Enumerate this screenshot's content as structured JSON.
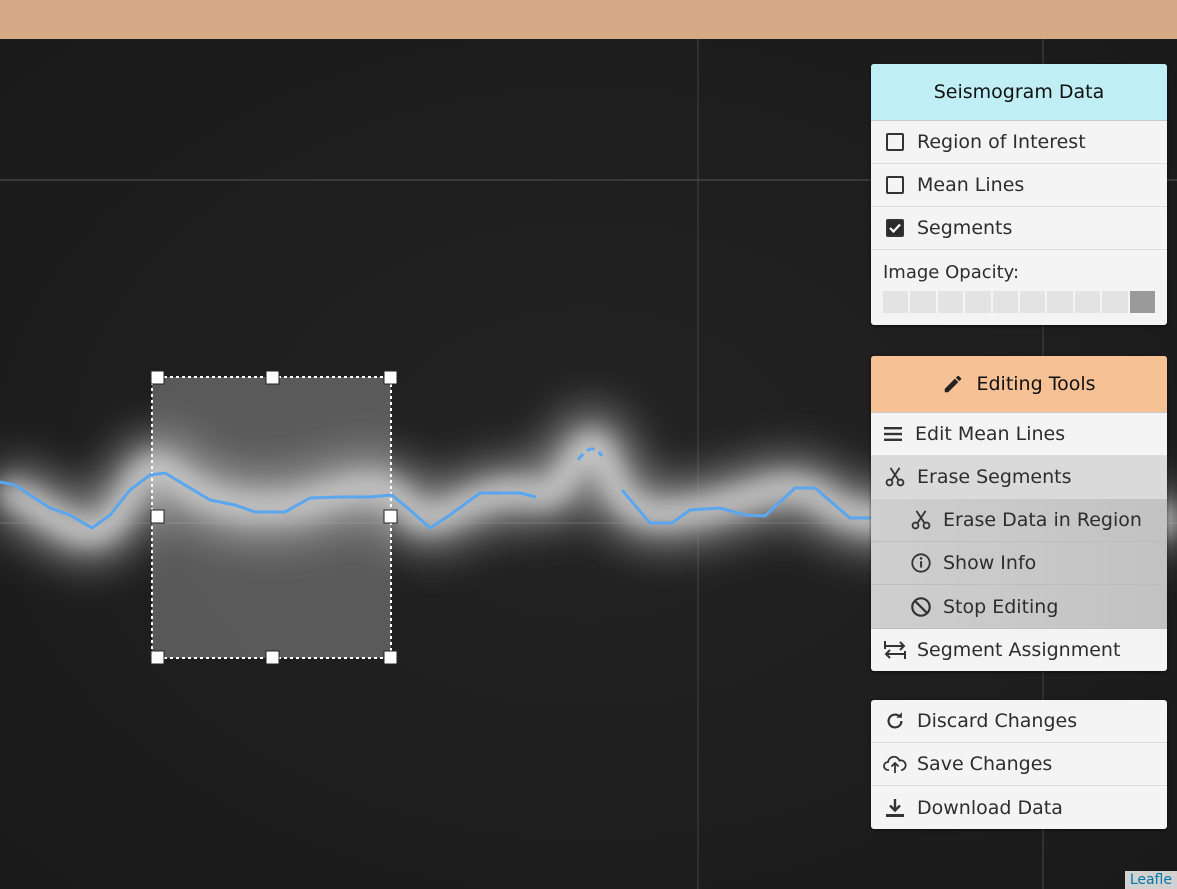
{
  "colors": {
    "topbar": "#d4aa87",
    "seismogram_header": "#bfeef4",
    "editing_header": "#f5c195",
    "trace": "#5aa7ef"
  },
  "seismogram_panel": {
    "title": "Seismogram Data",
    "layers": [
      {
        "label": "Region of Interest",
        "checked": false
      },
      {
        "label": "Mean Lines",
        "checked": false
      },
      {
        "label": "Segments",
        "checked": true
      }
    ],
    "opacity_label": "Image Opacity:",
    "opacity_level": 1.0
  },
  "editing_panel": {
    "title": "Editing Tools",
    "title_icon": "pencil-icon",
    "items": [
      {
        "label": "Edit Mean Lines",
        "icon": "menu-lines-icon"
      },
      {
        "label": "Erase Segments",
        "icon": "scissors-icon"
      }
    ],
    "submenu": [
      {
        "label": "Erase Data in Region",
        "icon": "scissors-icon"
      },
      {
        "label": "Show Info",
        "icon": "info-icon"
      },
      {
        "label": "Stop Editing",
        "icon": "ban-icon"
      }
    ],
    "assignment": {
      "label": "Segment Assignment",
      "icon": "swap-arrows-icon"
    }
  },
  "actions_panel": {
    "items": [
      {
        "label": "Discard Changes",
        "icon": "refresh-icon"
      },
      {
        "label": "Save Changes",
        "icon": "cloud-upload-icon"
      },
      {
        "label": "Download Data",
        "icon": "download-icon"
      }
    ]
  },
  "attribution": "Leafle"
}
